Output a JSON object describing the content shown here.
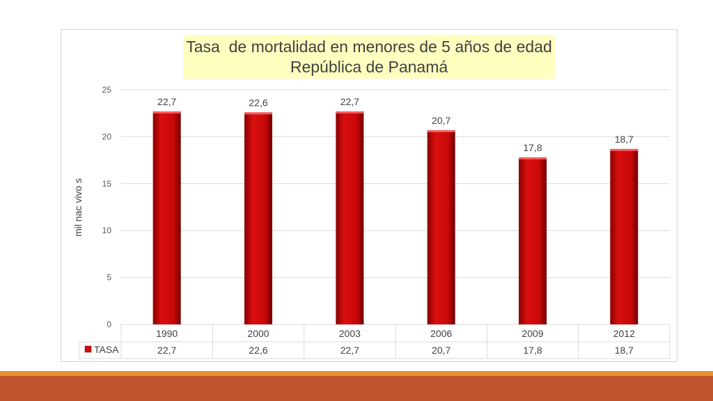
{
  "chart_data": {
    "type": "bar",
    "title": "Tasa  de mortalidad en menores de 5 años de edad",
    "subtitle": "República de Panamá",
    "ylabel": "mil nac vivo s",
    "ylim": [
      0,
      25
    ],
    "yticks": [
      0,
      5,
      10,
      15,
      20,
      25
    ],
    "grid": true,
    "categories": [
      "1990",
      "2000",
      "2003",
      "2006",
      "2009",
      "2012"
    ],
    "series": [
      {
        "name": "TASA",
        "values": [
          22.7,
          22.6,
          22.7,
          20.7,
          17.8,
          18.7
        ],
        "labels": [
          "22,7",
          "22,6",
          "22,7",
          "20,7",
          "17,8",
          "18,7"
        ],
        "color": "#cc0a0a"
      }
    ],
    "data_table": true,
    "legend": "data-table"
  },
  "theme": {
    "footer_accent": "#e8902e",
    "footer": "#bf562d"
  }
}
